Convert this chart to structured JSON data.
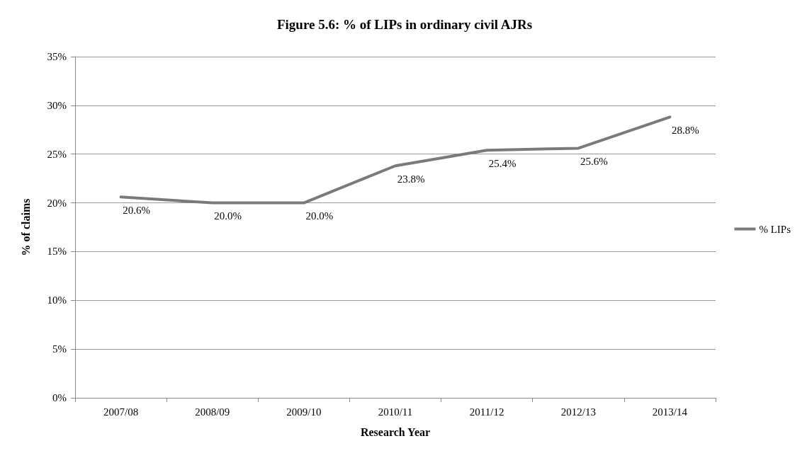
{
  "chart_data": {
    "type": "line",
    "title": "Figure 5.6: % of LIPs in ordinary civil AJRs",
    "xlabel": "Research Year",
    "ylabel": "% of claims",
    "categories": [
      "2007/08",
      "2008/09",
      "2009/10",
      "2010/11",
      "2011/12",
      "2012/13",
      "2013/14"
    ],
    "series": [
      {
        "name": "% LIPs",
        "color": "#7a7a7a",
        "values": [
          20.6,
          20.0,
          20.0,
          23.8,
          25.4,
          25.6,
          28.8
        ],
        "value_labels": [
          "20.6%",
          "20.0%",
          "20.0%",
          "23.8%",
          "25.4%",
          "25.6%",
          "28.8%"
        ]
      }
    ],
    "ylim": [
      0,
      35
    ],
    "yticks": [
      {
        "value": 0,
        "label": "0%"
      },
      {
        "value": 5,
        "label": "5%"
      },
      {
        "value": 10,
        "label": "10%"
      },
      {
        "value": 15,
        "label": "15%"
      },
      {
        "value": 20,
        "label": "20%"
      },
      {
        "value": 25,
        "label": "25%"
      },
      {
        "value": 30,
        "label": "30%"
      },
      {
        "value": 35,
        "label": "35%"
      }
    ],
    "grid": "y",
    "legend": "right",
    "marker": "none",
    "line_style": "solid"
  }
}
